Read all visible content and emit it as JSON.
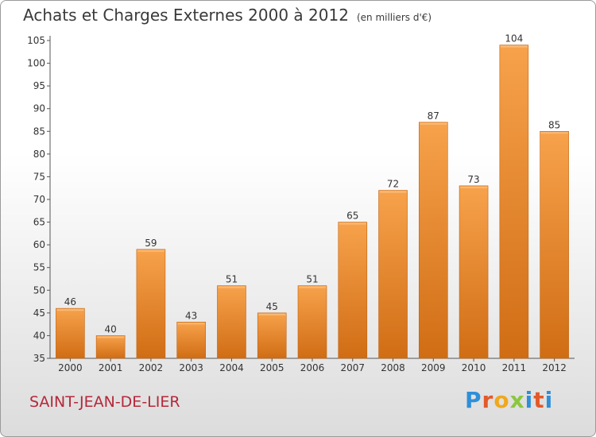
{
  "header": {
    "title": "Achats et Charges Externes 2000 à 2012",
    "unit_note": "(en milliers d'€)"
  },
  "footer": {
    "commune": "SAINT-JEAN-DE-LIER",
    "brand": "Proxiti"
  },
  "colors": {
    "bar_light": "#f7a24c",
    "bar_dark": "#d06d14",
    "axis": "#555555",
    "text": "#333333",
    "commune": "#b5283a"
  },
  "chart_data": {
    "type": "bar",
    "title": "Achats et Charges Externes 2000 à 2012",
    "subtitle": "(en milliers d'€)",
    "xlabel": "",
    "ylabel": "",
    "categories": [
      "2000",
      "2001",
      "2002",
      "2003",
      "2004",
      "2005",
      "2006",
      "2007",
      "2008",
      "2009",
      "2010",
      "2011",
      "2012"
    ],
    "values": [
      46,
      40,
      59,
      43,
      51,
      45,
      51,
      65,
      72,
      87,
      73,
      104,
      85
    ],
    "data_labels": [
      "46",
      "40",
      "59",
      "43",
      "51",
      "45",
      "51",
      "65",
      "72",
      "87",
      "73",
      "104",
      "85"
    ],
    "ylim": [
      35,
      105
    ],
    "yticks": [
      35,
      40,
      45,
      50,
      55,
      60,
      65,
      70,
      75,
      80,
      85,
      90,
      95,
      100,
      105
    ],
    "ytick_labels": [
      "35",
      "40",
      "45",
      "50",
      "55",
      "60",
      "65",
      "70",
      "75",
      "80",
      "85",
      "90",
      "95",
      "100",
      "105"
    ],
    "grid": false,
    "legend": "none"
  }
}
